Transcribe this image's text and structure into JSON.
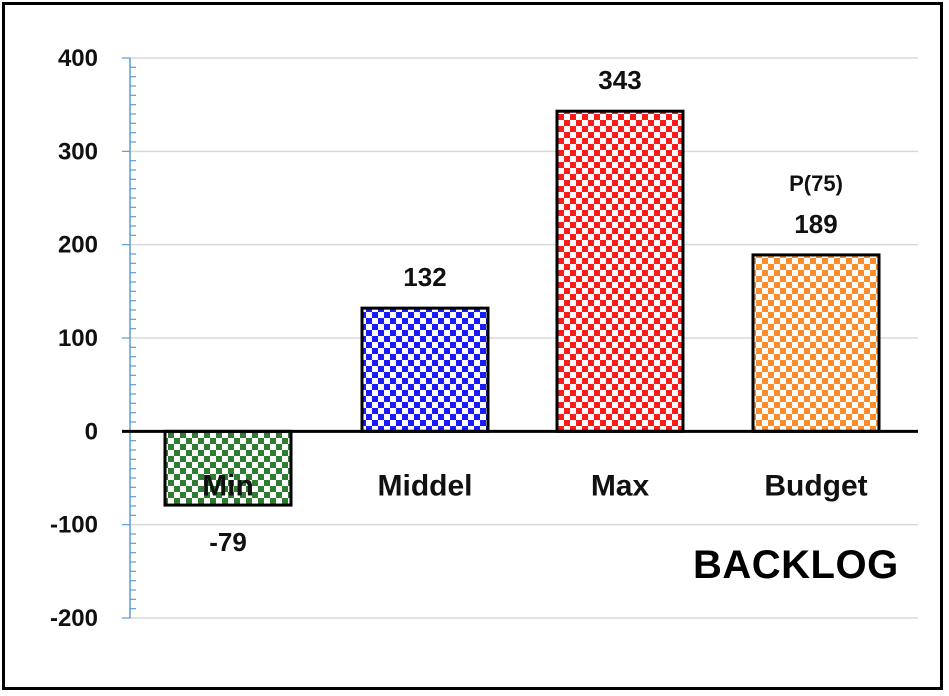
{
  "chart_data": {
    "type": "bar",
    "categories": [
      "Min",
      "Middel",
      "Max",
      "Budget"
    ],
    "values": [
      -79,
      132,
      343,
      189
    ],
    "data_labels": [
      "-79",
      "132",
      "343",
      "189"
    ],
    "annotations": [
      {
        "category": "Budget",
        "text": "P(75)"
      }
    ],
    "ylim": [
      -200,
      400
    ],
    "yticks": [
      400,
      300,
      200,
      100,
      0,
      -100,
      -200
    ],
    "grid": true,
    "colors": [
      "#2e7d32",
      "#1a1aff",
      "#ff1a1a",
      "#ff8c2a"
    ],
    "pattern": "checkerboard"
  },
  "overlay_text": "BACKLOG"
}
